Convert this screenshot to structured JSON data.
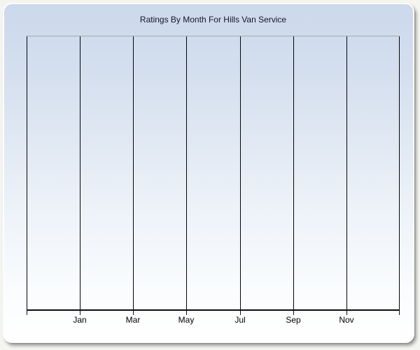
{
  "window": {
    "outer_background": "#f4f4f1",
    "panel_background_top": "#ccd9eb",
    "panel_background_bottom": "#ffffff"
  },
  "chart_data": {
    "type": "line",
    "title": "Ratings By Month For Hills Van Service",
    "title_color": "#14142d",
    "xlabel": "",
    "ylabel": "",
    "x_tick_labels": [
      "Jan",
      "Mar",
      "May",
      "Jul",
      "Sep",
      "Nov"
    ],
    "x_gridline_count": 8,
    "series": [],
    "plot_empty": true,
    "legend": "none",
    "grid": "vertical gridlines only",
    "gridline_color": "#050505",
    "plot_top_border_color": "#a2a8b0",
    "axis_color": "#0c0c0c",
    "tick_label_color": "#000000"
  }
}
